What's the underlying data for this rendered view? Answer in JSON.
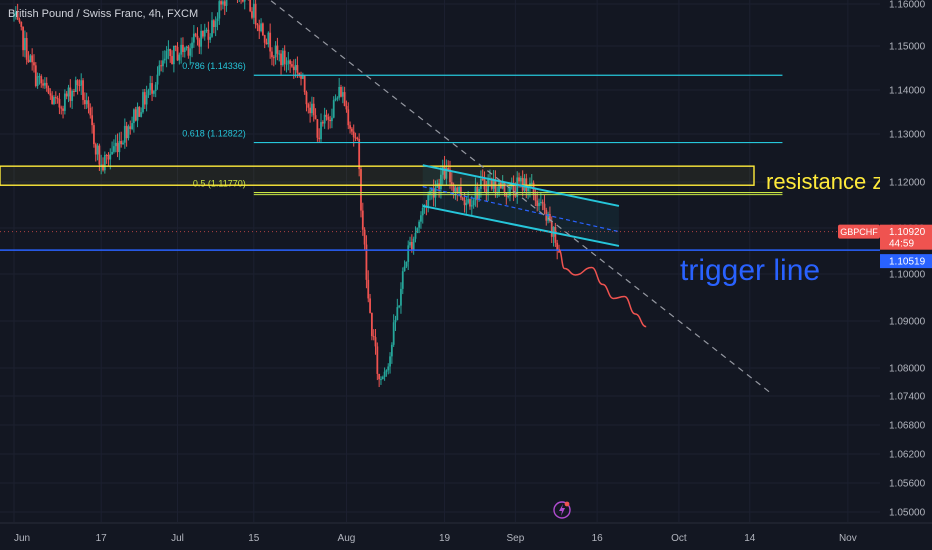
{
  "title": "British Pound / Swiss Franc, 4h, FXCM",
  "colors": {
    "background": "#131722",
    "up": "#26a69a",
    "down": "#ef5350",
    "axis_text": "#b2b5be",
    "fib": "#26c6da",
    "fib_mid": "#c8e645",
    "resistance": "#ffeb3b",
    "trigger": "#2962ff",
    "channel": "#26c6da",
    "forecast": "#ef5350",
    "trend": "#9598a1"
  },
  "chart_data": {
    "type": "candlestick",
    "symbol": "GBPCHF",
    "timeframe": "4h",
    "x_ticks": [
      "Jun",
      "17",
      "Jul",
      "15",
      "Aug",
      "19",
      "Sep",
      "16",
      "Oct",
      "14",
      "Nov"
    ],
    "y_ticks": [
      1.16,
      1.15,
      1.14,
      1.13,
      1.12,
      1.11,
      1.1,
      1.09,
      1.08,
      1.074,
      1.068,
      1.062,
      1.056,
      1.05
    ],
    "y_tick_labels": [
      "1.16000",
      "1.15000",
      "1.14000",
      "1.13000",
      "1.12000",
      "1.11000",
      "1.10000",
      "1.09000",
      "1.08000",
      "1.07400",
      "1.06800",
      "1.06200",
      "1.05600",
      "1.05000"
    ],
    "price_path": [
      [
        "Jun 01",
        1.157
      ],
      [
        "Jun 05",
        1.143
      ],
      [
        "Jun 09",
        1.136
      ],
      [
        "Jun 13",
        1.142
      ],
      [
        "Jun 17",
        1.123
      ],
      [
        "Jun 21",
        1.13
      ],
      [
        "Jun 25",
        1.138
      ],
      [
        "Jun 29",
        1.147
      ],
      [
        "Jul 03",
        1.15
      ],
      [
        "Jul 07",
        1.154
      ],
      [
        "Jul 11",
        1.165
      ],
      [
        "Jul 15",
        1.158
      ],
      [
        "Jul 19",
        1.148
      ],
      [
        "Jul 23",
        1.145
      ],
      [
        "Jul 27",
        1.13
      ],
      [
        "Jul 31",
        1.14
      ],
      [
        "Aug 03",
        1.127
      ],
      [
        "Aug 05",
        1.094
      ],
      [
        "Aug 07",
        1.077
      ],
      [
        "Aug 09",
        1.083
      ],
      [
        "Aug 12",
        1.104
      ],
      [
        "Aug 16",
        1.117
      ],
      [
        "Aug 19",
        1.122
      ],
      [
        "Aug 23",
        1.116
      ],
      [
        "Aug 27",
        1.12
      ],
      [
        "Aug 31",
        1.118
      ],
      [
        "Sep 03",
        1.12
      ],
      [
        "Sep 06",
        1.114
      ],
      [
        "Sep 09",
        1.105
      ]
    ],
    "current_price": 1.1092,
    "price_badge": {
      "symbol": "GBPCHF",
      "price": "1.10920",
      "countdown": "44:59"
    },
    "fib_levels": [
      {
        "label": "0.786 (1.14336)",
        "price": 1.14336
      },
      {
        "label": "0.618 (1.12822)",
        "price": 1.12822
      },
      {
        "label": "0.5 (1.11770)",
        "price": 1.1177
      }
    ],
    "resistance_zone": {
      "label": "resistance zone",
      "low": 1.1193,
      "high": 1.1233
    },
    "trigger_line": {
      "label": "trigger line",
      "price": 1.10519,
      "price_label": "1.10519"
    },
    "downtrend_line": {
      "start": [
        "Jul 15",
        1.164
      ],
      "end": [
        "Oct 18",
        1.0745
      ]
    },
    "channel": {
      "upper": [
        [
          "Aug 15",
          1.1235
        ],
        [
          "Sep 20",
          1.1148
        ]
      ],
      "lower": [
        [
          "Aug 15",
          1.1148
        ],
        [
          "Sep 20",
          1.1061
        ]
      ],
      "mid": [
        [
          "Aug 15",
          1.119
        ],
        [
          "Sep 20",
          1.1092
        ]
      ]
    },
    "forecast_path": [
      [
        "Sep 09",
        1.1053
      ],
      [
        "Sep 10",
        1.1012
      ],
      [
        "Sep 12",
        1.0998
      ],
      [
        "Sep 15",
        1.1014
      ],
      [
        "Sep 17",
        1.0978
      ],
      [
        "Sep 19",
        1.0948
      ],
      [
        "Sep 21",
        1.0952
      ],
      [
        "Sep 23",
        1.0915
      ],
      [
        "Sep 25",
        1.0888
      ]
    ]
  }
}
